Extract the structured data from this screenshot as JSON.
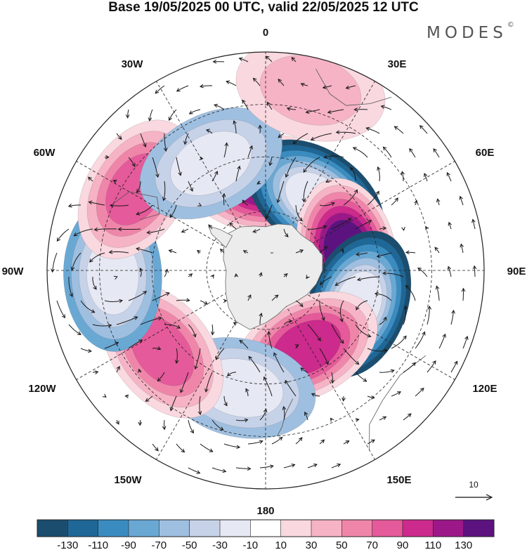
{
  "title": "Base 19/05/2025 00 UTC, valid 22/05/2025 12 UTC",
  "brand": "MODES",
  "brand_mark": "©",
  "longitude_labels": {
    "lon_0": "0",
    "lon_30e": "30E",
    "lon_60e": "60E",
    "lon_90e": "90E",
    "lon_120e": "120E",
    "lon_150e": "150E",
    "lon_180": "180",
    "lon_150w": "150W",
    "lon_120w": "120W",
    "lon_90w": "90W",
    "lon_60w": "60W",
    "lon_30w": "30W"
  },
  "vector_reference": "10",
  "colorbar": {
    "colors": [
      "#1b4d6e",
      "#1f6796",
      "#3a8cc0",
      "#6aa8d4",
      "#9fbfe0",
      "#c6d2e8",
      "#e6e8f3",
      "#ffffff",
      "#f9d8df",
      "#f6b3c5",
      "#ef86aa",
      "#e55a9a",
      "#cc2a8c",
      "#9c1888",
      "#5c1380"
    ],
    "tick_labels": [
      "-130",
      "-110",
      "-90",
      "-70",
      "-50",
      "-30",
      "-10",
      "10",
      "30",
      "50",
      "70",
      "90",
      "110",
      "130"
    ]
  },
  "map": {
    "projection": "south-polar-stereographic",
    "land_color": "#ececec",
    "anomaly_centers": [
      {
        "lon": 0,
        "colat": 0.4,
        "value": 120
      },
      {
        "lon": 35,
        "colat": 0.4,
        "value": -130
      },
      {
        "lon": 78,
        "colat": 0.38,
        "value": 130
      },
      {
        "lon": 110,
        "colat": 0.45,
        "value": -130
      },
      {
        "lon": 152,
        "colat": 0.4,
        "value": 100
      },
      {
        "lon": 192,
        "colat": 0.55,
        "value": -60
      },
      {
        "lon": 232,
        "colat": 0.6,
        "value": 75
      },
      {
        "lon": 268,
        "colat": 0.7,
        "value": -70
      },
      {
        "lon": 302,
        "colat": 0.7,
        "value": 75
      },
      {
        "lon": 333,
        "colat": 0.55,
        "value": -60
      },
      {
        "lon": 14,
        "colat": 0.85,
        "value": 35
      }
    ]
  }
}
